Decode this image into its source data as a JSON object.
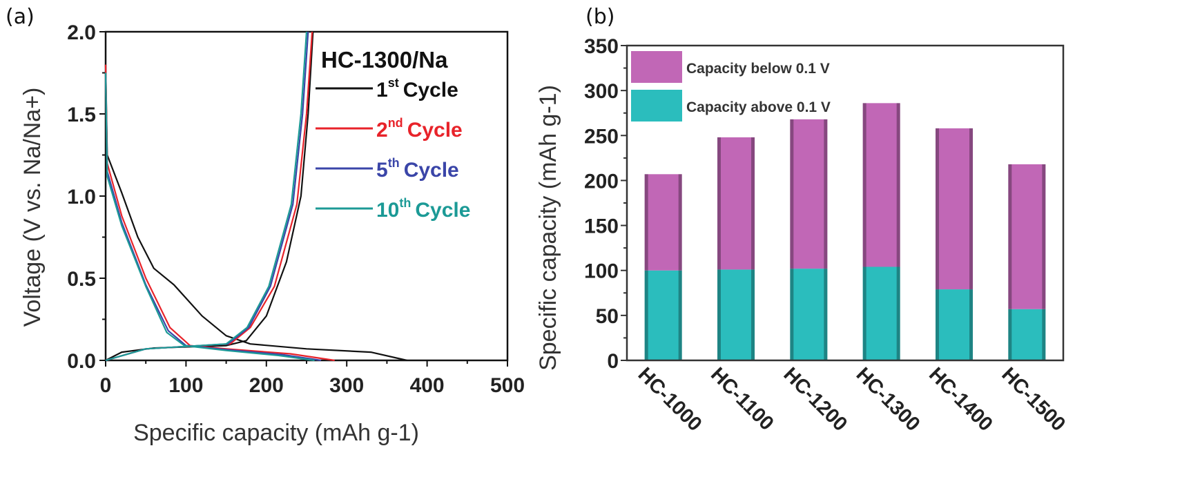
{
  "chart_data": [
    {
      "panel": "(a)",
      "type": "line",
      "title": "HC-1300/Na",
      "xlabel": "Specific capacity (mAh g-1)",
      "ylabel": "Voltage (V vs. Na/Na+)",
      "xlim": [
        0,
        500
      ],
      "ylim": [
        0,
        2.0
      ],
      "xticks": [
        "0",
        "100",
        "200",
        "300",
        "400",
        "500"
      ],
      "yticks": [
        "0.0",
        "0.5",
        "1.0",
        "1.5",
        "2.0"
      ],
      "legend_position": "top-right",
      "series": [
        {
          "name": "1st Cycle",
          "ord": "1",
          "sup": "st",
          "label": "Cycle",
          "color": "#111111",
          "discharge": [
            [
              0,
              1.8
            ],
            [
              2,
              1.25
            ],
            [
              20,
              1.02
            ],
            [
              40,
              0.75
            ],
            [
              60,
              0.56
            ],
            [
              85,
              0.46
            ],
            [
              120,
              0.27
            ],
            [
              150,
              0.15
            ],
            [
              180,
              0.1
            ],
            [
              250,
              0.07
            ],
            [
              330,
              0.05
            ],
            [
              375,
              0.0
            ]
          ],
          "charge": [
            [
              0,
              0.0
            ],
            [
              20,
              0.05
            ],
            [
              60,
              0.075
            ],
            [
              150,
              0.09
            ],
            [
              175,
              0.12
            ],
            [
              200,
              0.27
            ],
            [
              225,
              0.6
            ],
            [
              243,
              1.0
            ],
            [
              252,
              1.5
            ],
            [
              258,
              2.0
            ]
          ]
        },
        {
          "name": "2nd Cycle",
          "ord": "2",
          "sup": "nd",
          "label": "Cycle",
          "color": "#e8232a",
          "discharge": [
            [
              0,
              1.8
            ],
            [
              2,
              1.2
            ],
            [
              20,
              0.88
            ],
            [
              50,
              0.5
            ],
            [
              80,
              0.2
            ],
            [
              105,
              0.09
            ],
            [
              150,
              0.07
            ],
            [
              230,
              0.04
            ],
            [
              285,
              0.0
            ]
          ],
          "charge": [
            [
              0,
              0.0
            ],
            [
              50,
              0.07
            ],
            [
              100,
              0.085
            ],
            [
              155,
              0.1
            ],
            [
              180,
              0.2
            ],
            [
              210,
              0.45
            ],
            [
              238,
              0.95
            ],
            [
              250,
              1.5
            ],
            [
              257,
              2.0
            ]
          ]
        },
        {
          "name": "5th Cycle",
          "ord": "5",
          "sup": "th",
          "label": "Cycle",
          "color": "#3a45a8",
          "discharge": [
            [
              0,
              1.75
            ],
            [
              2,
              1.15
            ],
            [
              20,
              0.84
            ],
            [
              50,
              0.46
            ],
            [
              78,
              0.18
            ],
            [
              100,
              0.09
            ],
            [
              150,
              0.065
            ],
            [
              220,
              0.035
            ],
            [
              268,
              0.0
            ]
          ],
          "charge": [
            [
              0,
              0.0
            ],
            [
              50,
              0.07
            ],
            [
              100,
              0.085
            ],
            [
              152,
              0.1
            ],
            [
              178,
              0.2
            ],
            [
              205,
              0.45
            ],
            [
              233,
              0.95
            ],
            [
              245,
              1.5
            ],
            [
              252,
              2.0
            ]
          ]
        },
        {
          "name": "10th Cycle",
          "ord": "10",
          "sup": "th",
          "label": "Cycle",
          "color": "#1c9a96",
          "discharge": [
            [
              0,
              1.75
            ],
            [
              2,
              1.12
            ],
            [
              20,
              0.82
            ],
            [
              50,
              0.45
            ],
            [
              76,
              0.17
            ],
            [
              98,
              0.09
            ],
            [
              150,
              0.06
            ],
            [
              215,
              0.03
            ],
            [
              260,
              0.0
            ]
          ],
          "charge": [
            [
              0,
              0.0
            ],
            [
              50,
              0.07
            ],
            [
              100,
              0.085
            ],
            [
              150,
              0.1
            ],
            [
              176,
              0.2
            ],
            [
              203,
              0.45
            ],
            [
              231,
              0.95
            ],
            [
              243,
              1.5
            ],
            [
              250,
              2.0
            ]
          ]
        }
      ]
    },
    {
      "panel": "(b)",
      "type": "bar",
      "stacked": true,
      "xlabel": "",
      "ylabel": "Specific capacity (mAh g-1)",
      "ylim": [
        0,
        350
      ],
      "yticks": [
        "0",
        "50",
        "100",
        "150",
        "200",
        "250",
        "300",
        "350"
      ],
      "categories": [
        "HC-1000",
        "HC-1100",
        "HC-1200",
        "HC-1300",
        "HC-1400",
        "HC-1500"
      ],
      "legend_position": "top-left",
      "series": [
        {
          "name": "Capacity above 0.1 V",
          "color": "#2bbdbd",
          "values": [
            100,
            101,
            102,
            104,
            79,
            57
          ]
        },
        {
          "name": "Capacity below 0.1 V",
          "color": "#c167b6",
          "values": [
            107,
            147,
            166,
            182,
            179,
            161
          ]
        }
      ]
    }
  ]
}
